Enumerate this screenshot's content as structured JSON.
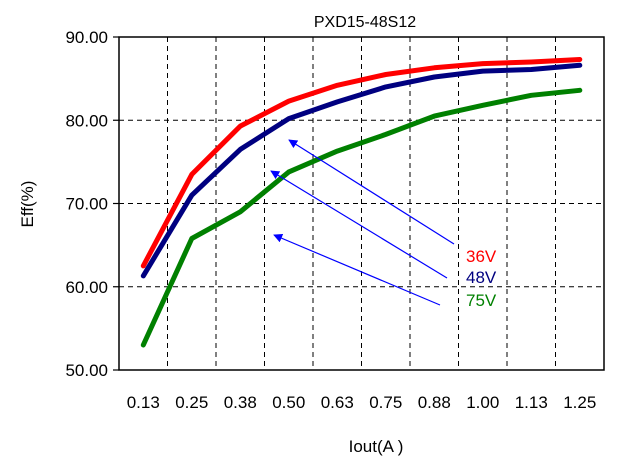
{
  "chart_data": {
    "type": "line",
    "title": "PXD15-48S12",
    "xlabel": "Iout(A )",
    "ylabel": "Eff(%)",
    "categories": [
      "0.13",
      "0.25",
      "0.38",
      "0.50",
      "0.63",
      "0.75",
      "0.88",
      "1.00",
      "1.13",
      "1.25"
    ],
    "ylim": [
      50,
      90
    ],
    "yticks": [
      "50.00",
      "60.00",
      "70.00",
      "80.00",
      "90.00"
    ],
    "grid": true,
    "series": [
      {
        "name": "36V",
        "color": "#ff0000",
        "values": [
          62.5,
          73.5,
          79.3,
          82.3,
          84.2,
          85.5,
          86.3,
          86.8,
          87.0,
          87.3
        ]
      },
      {
        "name": "48V",
        "color": "#000080",
        "values": [
          61.3,
          71.0,
          76.5,
          80.2,
          82.2,
          84.0,
          85.2,
          85.9,
          86.1,
          86.6
        ]
      },
      {
        "name": "75V",
        "color": "#008000",
        "values": [
          53.0,
          65.8,
          69.0,
          73.8,
          76.3,
          78.3,
          80.5,
          81.8,
          83.0,
          83.6
        ]
      }
    ],
    "annotation_color": "#0000ff"
  }
}
